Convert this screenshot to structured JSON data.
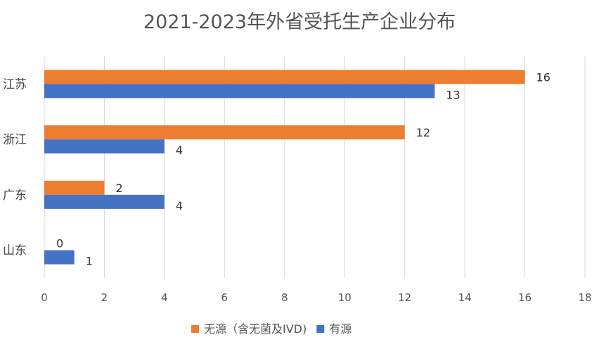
{
  "chart_data": {
    "type": "bar",
    "orientation": "horizontal",
    "title": "2021-2023年外省受托生产企业分布",
    "categories": [
      "江苏",
      "浙江",
      "广东",
      "山东"
    ],
    "series": [
      {
        "name": "无源（含无菌及IVD)",
        "color": "#ED7D31",
        "values": [
          16,
          12,
          2,
          0
        ]
      },
      {
        "name": "有源",
        "color": "#4472C4",
        "values": [
          13,
          4,
          4,
          1
        ]
      }
    ],
    "xlim": [
      0,
      18
    ],
    "xticks": [
      0,
      2,
      4,
      6,
      8,
      10,
      12,
      14,
      16,
      18
    ],
    "grid": true,
    "legend": "bottom",
    "xlabel": "",
    "ylabel": ""
  }
}
